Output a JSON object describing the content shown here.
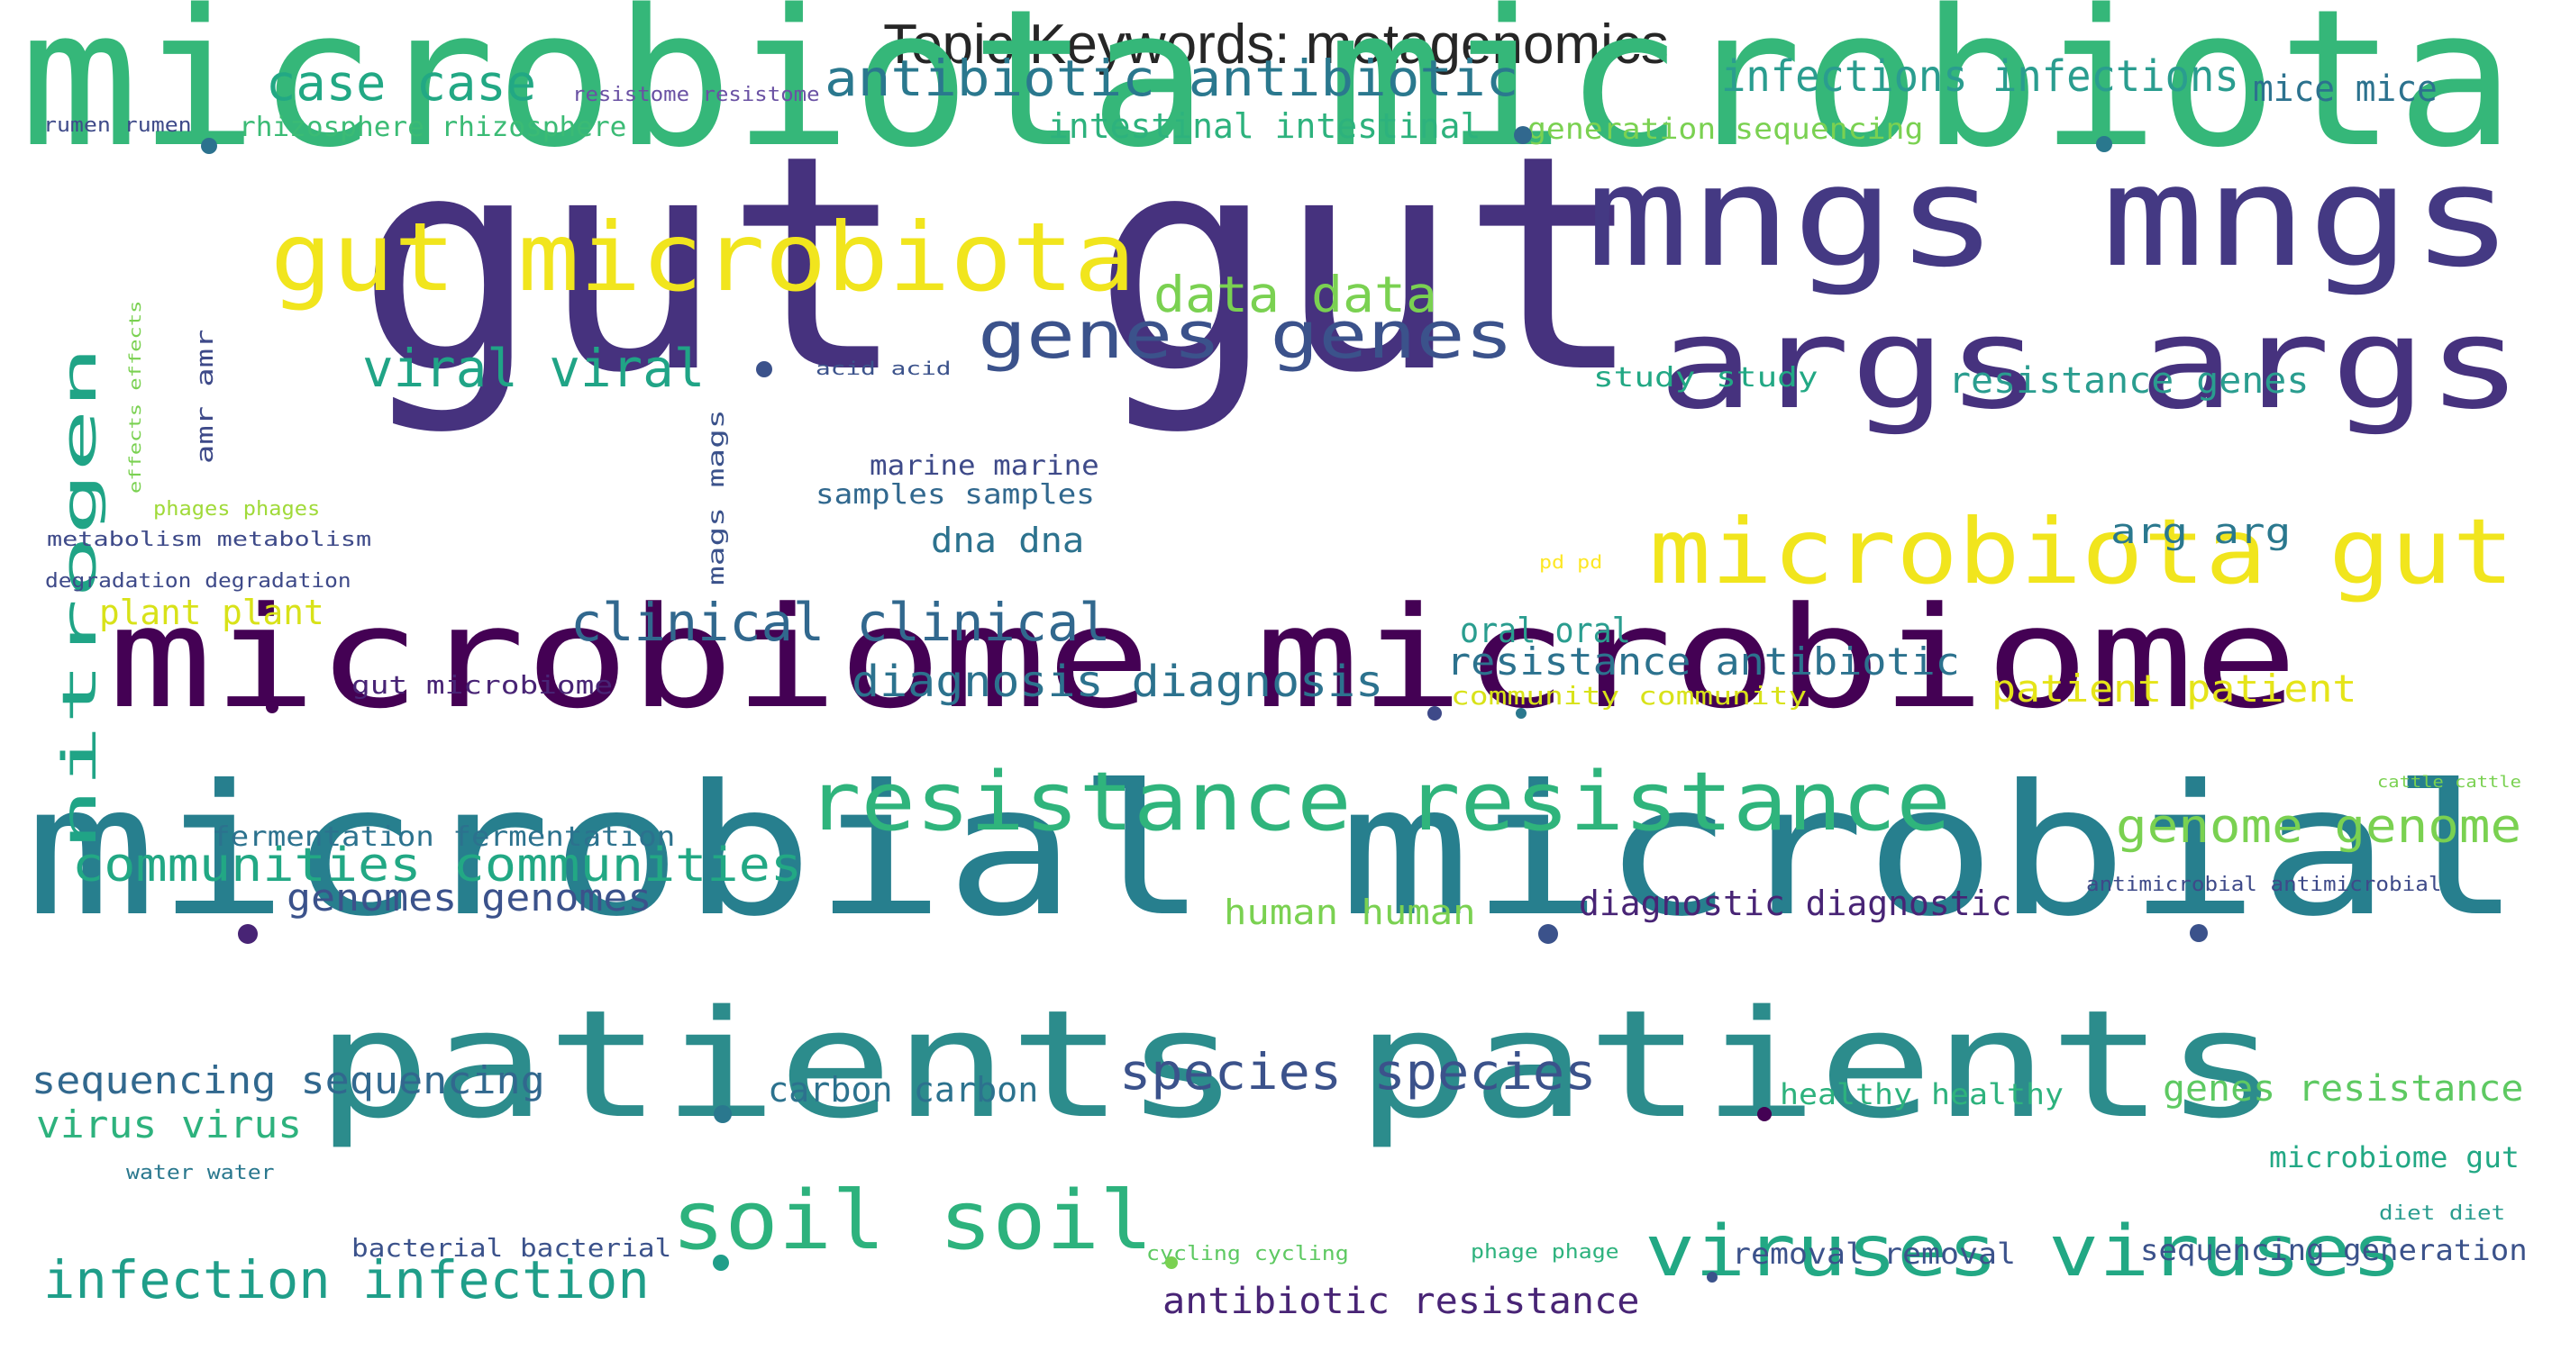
{
  "title": "Topic Keywords: metagenomics",
  "colors": {
    "palette": "viridis",
    "background": "#ffffff",
    "title": "#262626"
  },
  "words": [
    {
      "text": "gut gut",
      "color": "#46327e"
    },
    {
      "text": "microbiota microbiota",
      "color": "#35b779"
    },
    {
      "text": "microbial microbial",
      "color": "#277f8e"
    },
    {
      "text": "microbiome microbiome",
      "color": "#440154"
    },
    {
      "text": "patients patients",
      "color": "#2c8c8c"
    },
    {
      "text": "mngs mngs",
      "color": "#443983"
    },
    {
      "text": "args args",
      "color": "#46327e"
    },
    {
      "text": "gut microbiota",
      "color": "#f1e51d"
    },
    {
      "text": "microbiota gut",
      "color": "#f1e51d"
    },
    {
      "text": "resistance resistance",
      "color": "#2fb47c"
    },
    {
      "text": "soil soil",
      "color": "#2db27d"
    },
    {
      "text": "viruses viruses",
      "color": "#22a884"
    },
    {
      "text": "genes genes",
      "color": "#3b528b"
    },
    {
      "text": "antibiotic antibiotic",
      "color": "#2a788e"
    },
    {
      "text": "case case",
      "color": "#22a884"
    },
    {
      "text": "infections infections",
      "color": "#2a9d8f"
    },
    {
      "text": "mice mice",
      "color": "#2c728e"
    },
    {
      "text": "resistome resistome",
      "color": "#6a51a3"
    },
    {
      "text": "rumen rumen",
      "color": "#3e4a89"
    },
    {
      "text": "rhizosphere rhizosphere",
      "color": "#3bbb75"
    },
    {
      "text": "intestinal intestinal",
      "color": "#2db27d"
    },
    {
      "text": "generation sequencing",
      "color": "#7ad151"
    },
    {
      "text": "data data",
      "color": "#7ad151"
    },
    {
      "text": "viral viral",
      "color": "#20a486"
    },
    {
      "text": "study study",
      "color": "#22a884"
    },
    {
      "text": "resistance genes",
      "color": "#2a9d8f"
    },
    {
      "text": "acid acid",
      "color": "#3b528b"
    },
    {
      "text": "nitrogen",
      "color": "#20a486"
    },
    {
      "text": "amr amr",
      "color": "#3e4a89"
    },
    {
      "text": "effects effects",
      "color": "#7ad151"
    },
    {
      "text": "mags mags",
      "color": "#3b528b"
    },
    {
      "text": "marine marine",
      "color": "#3e4a89"
    },
    {
      "text": "samples samples",
      "color": "#31688e"
    },
    {
      "text": "phages phages",
      "color": "#a0da39"
    },
    {
      "text": "metabolism metabolism",
      "color": "#3e4a89"
    },
    {
      "text": "dna dna",
      "color": "#2c728e"
    },
    {
      "text": "pd pd",
      "color": "#fde725"
    },
    {
      "text": "arg arg",
      "color": "#2a788e"
    },
    {
      "text": "degradation degradation",
      "color": "#3e4a89"
    },
    {
      "text": "plant plant",
      "color": "#d8e219"
    },
    {
      "text": "clinical clinical",
      "color": "#31688e"
    },
    {
      "text": "oral oral",
      "color": "#2a9d8f"
    },
    {
      "text": "resistance antibiotic",
      "color": "#2c728e"
    },
    {
      "text": "gut microbiome",
      "color": "#482475"
    },
    {
      "text": "diagnosis diagnosis",
      "color": "#2c728e"
    },
    {
      "text": "community community",
      "color": "#d8e219"
    },
    {
      "text": "patient patient",
      "color": "#e5e419"
    },
    {
      "text": "cattle cattle",
      "color": "#7ad151"
    },
    {
      "text": "fermentation fermentation",
      "color": "#2c728e"
    },
    {
      "text": "genome genome",
      "color": "#7ad151"
    },
    {
      "text": "communities communities",
      "color": "#22a884"
    },
    {
      "text": "antimicrobial antimicrobial",
      "color": "#3e4a89"
    },
    {
      "text": "genomes genomes",
      "color": "#3b528b"
    },
    {
      "text": "human human",
      "color": "#7ad151"
    },
    {
      "text": "diagnostic diagnostic",
      "color": "#482475"
    },
    {
      "text": "sequencing sequencing",
      "color": "#31688e"
    },
    {
      "text": "carbon carbon",
      "color": "#2c728e"
    },
    {
      "text": "species species",
      "color": "#3b528b"
    },
    {
      "text": "healthy healthy",
      "color": "#2db27d"
    },
    {
      "text": "genes resistance",
      "color": "#5ec962"
    },
    {
      "text": "virus virus",
      "color": "#2db27d"
    },
    {
      "text": "water water",
      "color": "#2a788e"
    },
    {
      "text": "microbiome gut",
      "color": "#22a884"
    },
    {
      "text": "diet diet",
      "color": "#2a9d8f"
    },
    {
      "text": "bacterial bacterial",
      "color": "#3b528b"
    },
    {
      "text": "cycling cycling",
      "color": "#5ec962"
    },
    {
      "text": "phage phage",
      "color": "#2db27d"
    },
    {
      "text": "removal removal",
      "color": "#3b528b"
    },
    {
      "text": "sequencing generation",
      "color": "#3b528b"
    },
    {
      "text": "infection infection",
      "color": "#1f9e89"
    },
    {
      "text": "antibiotic resistance",
      "color": "#482475"
    }
  ],
  "dots": [
    {
      "color": "#2c728e"
    },
    {
      "color": "#31688e"
    },
    {
      "color": "#2a788e"
    },
    {
      "color": "#3b528b"
    },
    {
      "color": "#440154"
    },
    {
      "color": "#3e4a89"
    },
    {
      "color": "#2a788e"
    },
    {
      "color": "#482475"
    },
    {
      "color": "#3b528b"
    },
    {
      "color": "#3b528b"
    },
    {
      "color": "#2a788e"
    },
    {
      "color": "#440154"
    },
    {
      "color": "#1f9e89"
    },
    {
      "color": "#7ad151"
    },
    {
      "color": "#3b528b"
    }
  ]
}
